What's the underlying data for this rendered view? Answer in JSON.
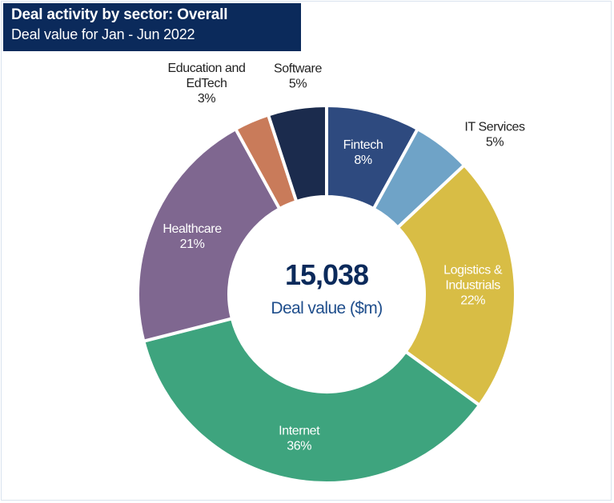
{
  "header": {
    "title": "Deal activity by sector: Overall",
    "subtitle": "Deal value for Jan - Jun 2022"
  },
  "center": {
    "value": "15,038",
    "label": "Deal value ($m)"
  },
  "colors": {
    "header_bg": "#0b2a5b",
    "center_value": "#0b2a5b",
    "center_label": "#1f4e8c"
  },
  "chart_data": {
    "type": "pie",
    "style": "donut",
    "title": "Deal activity by sector: Overall",
    "subtitle": "Deal value for Jan - Jun 2022",
    "center_value": 15038,
    "center_label": "Deal value ($m)",
    "slices": [
      {
        "label": [
          "Fintech"
        ],
        "value": 8,
        "pct": "8%",
        "color": "#2e4a7f",
        "label_position": "inside"
      },
      {
        "label": [
          "IT Services"
        ],
        "value": 5,
        "pct": "5%",
        "color": "#6fa3c7",
        "label_position": "outside"
      },
      {
        "label": [
          "Logistics &",
          "Industrials"
        ],
        "value": 22,
        "pct": "22%",
        "color": "#d8bd45",
        "label_position": "inside"
      },
      {
        "label": [
          "Internet"
        ],
        "value": 36,
        "pct": "36%",
        "color": "#3ea47e",
        "label_position": "inside"
      },
      {
        "label": [
          "Healthcare"
        ],
        "value": 21,
        "pct": "21%",
        "color": "#7f6790",
        "label_position": "inside"
      },
      {
        "label": [
          "Education and",
          "EdTech"
        ],
        "value": 3,
        "pct": "3%",
        "color": "#c97b5a",
        "label_position": "outside"
      },
      {
        "label": [
          "Software"
        ],
        "value": 5,
        "pct": "5%",
        "color": "#1b2b4d",
        "label_position": "outside"
      }
    ]
  }
}
